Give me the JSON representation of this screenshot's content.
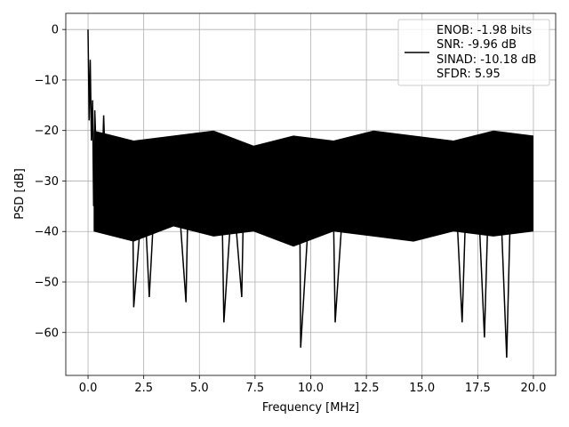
{
  "chart_data": {
    "type": "line",
    "title": "",
    "xlabel": "Frequency [MHz]",
    "ylabel": "PSD [dB]",
    "xlim": [
      -1,
      21
    ],
    "ylim": [
      -68.5,
      3.2
    ],
    "grid": true,
    "legend_position": "top-right",
    "xticks": [
      0.0,
      2.5,
      5.0,
      7.5,
      10.0,
      12.5,
      15.0,
      17.5,
      20.0
    ],
    "xtick_labels": [
      "0.0",
      "2.5",
      "5.0",
      "7.5",
      "10.0",
      "12.5",
      "15.0",
      "17.5",
      "20.0"
    ],
    "yticks": [
      0,
      -10,
      -20,
      -30,
      -40,
      -50,
      -60
    ],
    "ytick_labels": [
      "0",
      "−10",
      "−20",
      "−30",
      "−40",
      "−50",
      "−60"
    ],
    "series": [
      {
        "color": "#000000",
        "x": [
          0.0,
          0.05,
          0.1,
          0.15,
          0.2,
          0.25,
          0.3,
          0.4,
          0.5,
          0.6,
          0.7,
          0.8,
          0.9,
          1.0,
          1.5,
          2.0,
          2.05,
          2.5,
          2.75,
          3.0,
          3.5,
          4.0,
          4.4,
          4.5,
          5.0,
          5.5,
          6.0,
          6.1,
          6.5,
          6.9,
          7.0,
          7.5,
          8.0,
          8.5,
          9.0,
          9.5,
          9.55,
          10.0,
          10.5,
          11.0,
          11.1,
          11.5,
          12.0,
          12.5,
          13.0,
          13.5,
          14.0,
          14.5,
          15.0,
          15.5,
          16.0,
          16.5,
          16.8,
          17.0,
          17.5,
          17.8,
          18.0,
          18.5,
          18.8,
          19.0,
          19.5,
          20.0
        ],
        "y": [
          0,
          -18,
          -6,
          -22,
          -14,
          -35,
          -16,
          -29,
          -23,
          -33,
          -17,
          -31,
          -24,
          -30,
          -29,
          -31,
          -55,
          -30,
          -53,
          -32,
          -31,
          -29,
          -54,
          -31,
          -30,
          -31,
          -30,
          -58,
          -31,
          -53,
          -30,
          -31,
          -30,
          -31,
          -29,
          -31,
          -63,
          -30,
          -31,
          -30,
          -58,
          -31,
          -29,
          -31,
          -30,
          -31,
          -30,
          -31,
          -29,
          -31,
          -30,
          -31,
          -58,
          -30,
          -31,
          -61,
          -30,
          -31,
          -65,
          -30,
          -31,
          -30
        ]
      }
    ],
    "legend": {
      "entries": [
        "ENOB: -1.98 bits",
        "SNR: -9.96 dB",
        "SINAD: -10.18 dB",
        "SFDR: 5.95"
      ]
    }
  }
}
